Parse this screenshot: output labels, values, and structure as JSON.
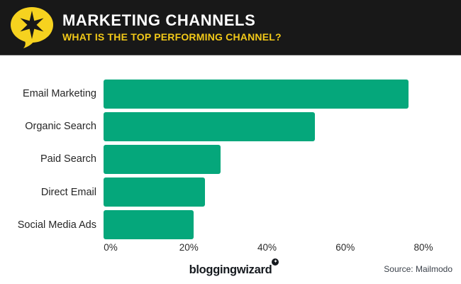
{
  "header": {
    "title": "MARKETING CHANNELS",
    "subtitle": "WHAT IS THE TOP PERFORMING CHANNEL?",
    "bg_color": "#181818",
    "title_color": "#ffffff",
    "accent_color": "#f2c918",
    "logo_icon": "speech-bubble-star-icon",
    "logo_color": "#f6d21f"
  },
  "chart_data": {
    "type": "bar",
    "orientation": "horizontal",
    "title": "MARKETING CHANNELS",
    "subtitle": "WHAT IS THE TOP PERFORMING CHANNEL?",
    "categories": [
      "Email Marketing",
      "Organic Search",
      "Paid Search",
      "Direct Email",
      "Social Media Ads"
    ],
    "values": [
      78,
      54,
      30,
      26,
      23
    ],
    "unit": "%",
    "x_ticks": [
      "0%",
      "20%",
      "40%",
      "60%",
      "80%"
    ],
    "xlim": [
      0,
      80
    ],
    "bar_color": "#05a77b",
    "grid": false,
    "legend": false,
    "value_labels_shown": false
  },
  "footer": {
    "wordmark": "bloggingwizard",
    "wordmark_badge_icon": "sparkle-icon",
    "wordmark_badge_glyph": "✦",
    "source": "Source: Mailmodo"
  }
}
